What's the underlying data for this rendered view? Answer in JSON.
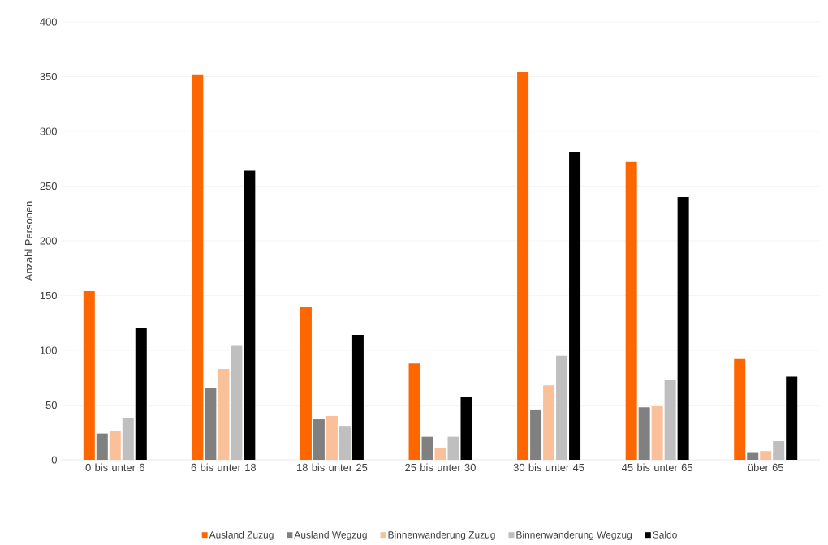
{
  "chart_data": {
    "type": "bar",
    "ylabel": "Anzahl Personen",
    "categories": [
      "0 bis unter 6",
      "6 bis unter 18",
      "18 bis unter 25",
      "25 bis unter 30",
      "30 bis unter 45",
      "45 bis unter 65",
      "über 65"
    ],
    "series": [
      {
        "name": "Ausland Zuzug",
        "color": "#ff6600",
        "values": [
          154,
          352,
          140,
          88,
          354,
          272,
          92
        ]
      },
      {
        "name": "Ausland Wegzug",
        "color": "#808080",
        "values": [
          24,
          66,
          37,
          21,
          46,
          48,
          7
        ]
      },
      {
        "name": "Binnenwanderung Zuzug",
        "color": "#f9c09a",
        "values": [
          26,
          83,
          40,
          11,
          68,
          49,
          8
        ]
      },
      {
        "name": "Binnenwanderung Wegzug",
        "color": "#bfbfbf",
        "values": [
          38,
          104,
          31,
          21,
          95,
          73,
          17
        ]
      },
      {
        "name": "Saldo",
        "color": "#000000",
        "values": [
          120,
          264,
          114,
          57,
          281,
          240,
          76
        ]
      }
    ],
    "ylim": [
      0,
      400
    ],
    "yticks": [
      0,
      50,
      100,
      150,
      200,
      250,
      300,
      350,
      400
    ],
    "grid": "y",
    "legend": "bottom"
  }
}
